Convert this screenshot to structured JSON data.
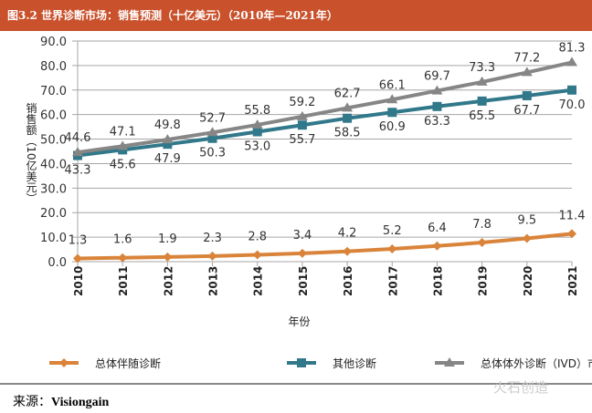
{
  "title": "图3.2 世界诊断市场：销售预测（十亿美元）（2010年—2021年）",
  "source_label": "来源：",
  "source_value": "Visiongain",
  "watermark": "火石创造",
  "chart_data": {
    "type": "line",
    "title": "",
    "xlabel": "年份",
    "ylabel": "销售额（10亿美元）",
    "ylim": [
      0,
      90
    ],
    "yticks": [
      "0.0",
      "10.0",
      "20.0",
      "30.0",
      "40.0",
      "50.0",
      "60.0",
      "70.0",
      "80.0",
      "90.0"
    ],
    "categories": [
      "2010",
      "2011",
      "2012",
      "2013",
      "2014",
      "2015",
      "2016",
      "2017",
      "2018",
      "2019",
      "2020",
      "2021"
    ],
    "grid": "horizontal",
    "legend_position": "bottom",
    "series": [
      {
        "name": "总体伴随诊断",
        "color": "#d9843a",
        "marker": "diamond",
        "values": [
          1.3,
          1.6,
          1.9,
          2.3,
          2.8,
          3.4,
          4.2,
          5.2,
          6.4,
          7.8,
          9.5,
          11.4
        ]
      },
      {
        "name": "其他诊断",
        "color": "#31788a",
        "marker": "square",
        "values": [
          43.3,
          45.6,
          47.9,
          50.3,
          53.0,
          55.7,
          58.5,
          60.9,
          63.3,
          65.5,
          67.7,
          70.0
        ]
      },
      {
        "name": "总体体外诊断（IVD）市场",
        "color": "#868686",
        "marker": "triangle",
        "values": [
          44.6,
          47.1,
          49.8,
          52.7,
          55.8,
          59.2,
          62.7,
          66.1,
          69.7,
          73.3,
          77.2,
          81.3
        ]
      }
    ]
  }
}
